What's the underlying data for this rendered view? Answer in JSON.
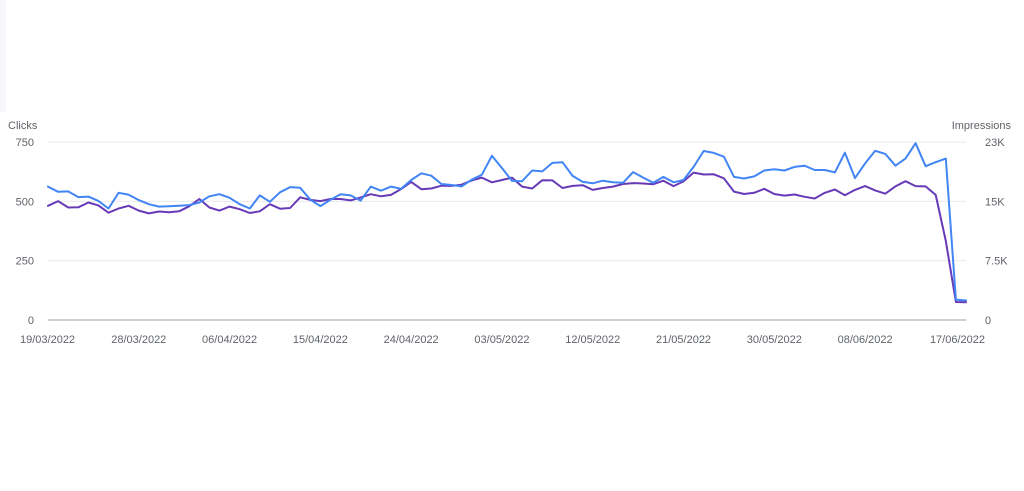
{
  "chart_data": {
    "type": "line",
    "title": "",
    "y_left": {
      "label": "Clicks",
      "ticks": [
        "0",
        "250",
        "500",
        "750"
      ],
      "range": [
        0,
        750
      ]
    },
    "y_right": {
      "label": "Impressions",
      "ticks": [
        "0",
        "7.5K",
        "15K",
        "23K"
      ],
      "range": [
        0,
        22500
      ]
    },
    "x_tick_labels": [
      "19/03/2022",
      "28/03/2022",
      "06/04/2022",
      "15/04/2022",
      "24/04/2022",
      "03/05/2022",
      "12/05/2022",
      "21/05/2022",
      "30/05/2022",
      "08/06/2022",
      "17/06/2022"
    ],
    "x_start": "19/03/2022",
    "grid": true,
    "legend": "none",
    "series": [
      {
        "name": "Clicks",
        "axis": "left",
        "color": "#4285f4",
        "values": [
          562,
          540,
          542,
          518,
          520,
          502,
          470,
          536,
          528,
          505,
          488,
          478,
          479,
          481,
          484,
          495,
          521,
          530,
          515,
          488,
          470,
          525,
          498,
          538,
          560,
          557,
          507,
          480,
          507,
          530,
          525,
          503,
          562,
          545,
          562,
          553,
          590,
          618,
          608,
          573,
          569,
          563,
          591,
          612,
          692,
          640,
          586,
          585,
          630,
          626,
          662,
          665,
          607,
          582,
          576,
          587,
          580,
          578,
          623,
          600,
          578,
          603,
          580,
          590,
          645,
          712,
          704,
          688,
          603,
          596,
          605,
          630,
          635,
          630,
          645,
          650,
          632,
          632,
          622,
          705,
          598,
          660,
          713,
          700,
          650,
          680,
          745,
          648,
          665,
          680,
          86,
          82
        ]
      },
      {
        "name": "Impressions",
        "axis": "right",
        "color": "#673ab7",
        "values": [
          14430,
          15030,
          14220,
          14250,
          14850,
          14490,
          13560,
          14100,
          14430,
          13830,
          13470,
          13710,
          13620,
          13740,
          14370,
          15300,
          14220,
          13830,
          14340,
          14010,
          13530,
          13740,
          14640,
          14070,
          14160,
          15510,
          15180,
          15030,
          15300,
          15300,
          15120,
          15480,
          15900,
          15630,
          15810,
          16560,
          17460,
          16530,
          16620,
          16980,
          16950,
          17100,
          17640,
          18000,
          17400,
          17700,
          18000,
          16860,
          16620,
          17670,
          17640,
          16680,
          16950,
          17040,
          16440,
          16680,
          16860,
          17190,
          17310,
          17250,
          17160,
          17610,
          16920,
          17520,
          18630,
          18390,
          18420,
          17910,
          16230,
          15930,
          16080,
          16590,
          15930,
          15720,
          15870,
          15570,
          15360,
          16080,
          16500,
          15780,
          16440,
          16920,
          16380,
          15960,
          16890,
          17550,
          16920,
          16890,
          15810,
          10000,
          2280,
          2250
        ]
      }
    ]
  }
}
